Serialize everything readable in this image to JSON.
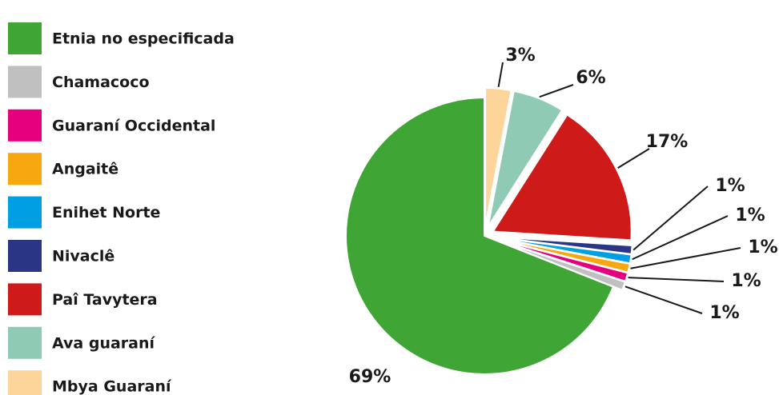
{
  "chart_data": {
    "type": "pie",
    "categories": [
      "Etnia no especificada",
      "Chamacoco",
      "Guaraní Occidental",
      "Angaitê",
      "Enihet Norte",
      "Nivaclê",
      "Paî Tavytera",
      "Ava guaraní",
      "Mbya Guaraní"
    ],
    "values": [
      69,
      1,
      1,
      1,
      1,
      1,
      17,
      6,
      3
    ],
    "value_labels": [
      "69%",
      "1%",
      "1%",
      "1%",
      "1%",
      "1%",
      "17%",
      "6%",
      "3%"
    ],
    "colors": [
      "#3fa535",
      "#c0c0c0",
      "#e6007e",
      "#f7a70f",
      "#009fe3",
      "#2b3585",
      "#cf1a1a",
      "#8fcbb4",
      "#fdd59b"
    ],
    "legend": "left"
  }
}
